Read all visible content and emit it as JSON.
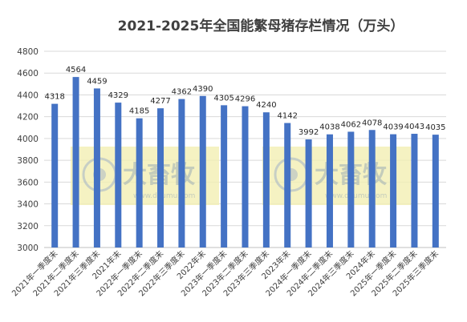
{
  "chart_data": {
    "type": "bar",
    "title": "2021-2025年全国能繁母猪存栏情况（万头）",
    "xlabel": "",
    "ylabel": "",
    "ylim": [
      3000,
      4800
    ],
    "yticks": [
      3000,
      3200,
      3400,
      3600,
      3800,
      4000,
      4200,
      4400,
      4600,
      4800
    ],
    "grid": true,
    "legend": "none",
    "bar_color": "#4472c4",
    "categories": [
      "2021年一季度末",
      "2021年二季度末",
      "2021年三季度末",
      "2021年末",
      "2022年一季度末",
      "2022年二季度末",
      "2022年三季度末",
      "2022年末",
      "2023年一季度末",
      "2023年二季度末",
      "2023年三季度末",
      "2023年末",
      "2024年一季度末",
      "2024年二季度末",
      "2024年三季度末",
      "2024年末",
      "2025年一季度末",
      "2025年二季度末",
      "2025年三季度末"
    ],
    "values": [
      4318,
      4564,
      4459,
      4329,
      4185,
      4277,
      4362,
      4390,
      4305,
      4296,
      4240,
      4142,
      3992,
      4038,
      4062,
      4078,
      4039,
      4043,
      4035
    ],
    "data_labels": [
      "4318",
      "4564",
      "4459",
      "4329",
      "4185",
      "4277",
      "4362",
      "4390",
      "4305",
      "4296",
      "4240",
      "4142",
      "3992",
      "4038",
      "4062",
      "4078",
      "4039",
      "4043",
      "4035"
    ]
  },
  "watermark": {
    "text": "大畜牧",
    "subtext": "www.dxumu.com"
  }
}
